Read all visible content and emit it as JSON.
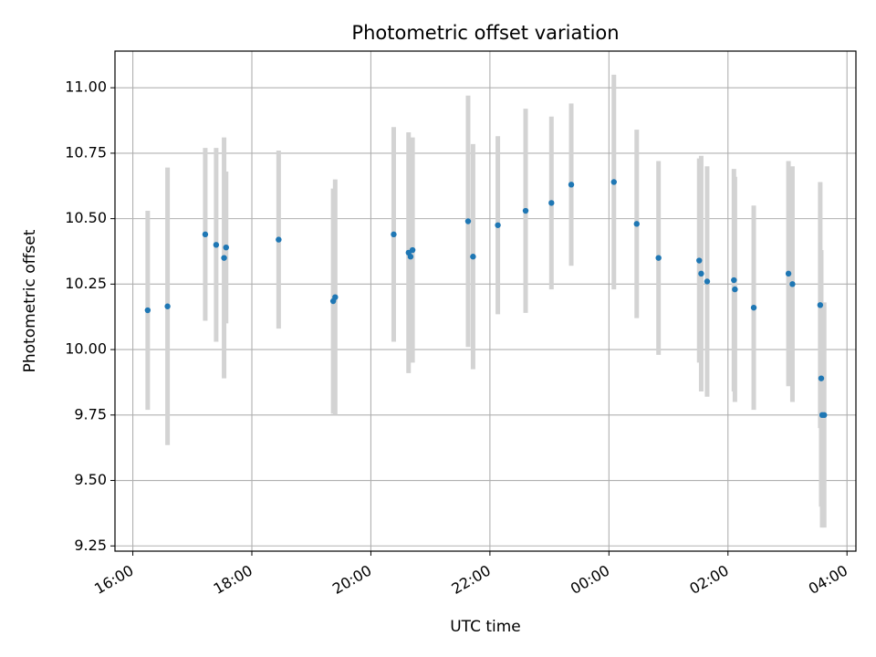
{
  "chart_data": {
    "type": "scatter",
    "title": "Photometric offset variation",
    "xlabel": "UTC time",
    "ylabel": "Photometric offset",
    "grid": true,
    "x_tick_labels": [
      "16:00",
      "18:00",
      "20:00",
      "22:00",
      "00:00",
      "02:00",
      "04:00"
    ],
    "x_ticks_hours": [
      16,
      18,
      20,
      22,
      24,
      26,
      28
    ],
    "xlim_hours": [
      15.7,
      28.15
    ],
    "y_ticks": [
      9.25,
      9.5,
      9.75,
      10.0,
      10.25,
      10.5,
      10.75,
      11.0
    ],
    "y_tick_labels": [
      "9.25",
      "9.50",
      "9.75",
      "10.00",
      "10.25",
      "10.50",
      "10.75",
      "11.00"
    ],
    "ylim": [
      9.23,
      11.14
    ],
    "marker_color": "#1f77b4",
    "errorbar_color": "#d3d3d3",
    "series": [
      {
        "points": [
          {
            "time": "16:15",
            "y": 10.15,
            "err": 0.38
          },
          {
            "time": "16:35",
            "y": 10.165,
            "err": 0.53
          },
          {
            "time": "17:13",
            "y": 10.44,
            "err": 0.33
          },
          {
            "time": "17:24",
            "y": 10.4,
            "err": 0.37
          },
          {
            "time": "17:32",
            "y": 10.35,
            "err": 0.46
          },
          {
            "time": "17:34",
            "y": 10.39,
            "err": 0.29
          },
          {
            "time": "18:27",
            "y": 10.42,
            "err": 0.34
          },
          {
            "time": "19:22",
            "y": 10.185,
            "err": 0.43
          },
          {
            "time": "19:24",
            "y": 10.2,
            "err": 0.45
          },
          {
            "time": "20:23",
            "y": 10.44,
            "err": 0.41
          },
          {
            "time": "20:38",
            "y": 10.37,
            "err": 0.46
          },
          {
            "time": "20:40",
            "y": 10.355,
            "err": 0.4
          },
          {
            "time": "20:42",
            "y": 10.38,
            "err": 0.43
          },
          {
            "time": "21:38",
            "y": 10.49,
            "err": 0.48
          },
          {
            "time": "21:43",
            "y": 10.355,
            "err": 0.43
          },
          {
            "time": "22:08",
            "y": 10.475,
            "err": 0.34
          },
          {
            "time": "22:36",
            "y": 10.53,
            "err": 0.39
          },
          {
            "time": "23:02",
            "y": 10.56,
            "err": 0.33
          },
          {
            "time": "23:22",
            "y": 10.63,
            "err": 0.31
          },
          {
            "time": "00:05",
            "y": 10.64,
            "err": 0.41
          },
          {
            "time": "00:28",
            "y": 10.48,
            "err": 0.36
          },
          {
            "time": "00:50",
            "y": 10.35,
            "err": 0.37
          },
          {
            "time": "01:31",
            "y": 10.34,
            "err": 0.39
          },
          {
            "time": "01:33",
            "y": 10.29,
            "err": 0.45
          },
          {
            "time": "01:39",
            "y": 10.26,
            "err": 0.44
          },
          {
            "time": "02:06",
            "y": 10.265,
            "err": 0.425
          },
          {
            "time": "02:07",
            "y": 10.23,
            "err": 0.43
          },
          {
            "time": "02:26",
            "y": 10.16,
            "err": 0.39
          },
          {
            "time": "03:01",
            "y": 10.29,
            "err": 0.43
          },
          {
            "time": "03:05",
            "y": 10.25,
            "err": 0.45
          },
          {
            "time": "03:33",
            "y": 10.17,
            "err": 0.47
          },
          {
            "time": "03:34",
            "y": 9.89,
            "err": 0.49
          },
          {
            "time": "03:35",
            "y": 9.75,
            "err": 0.43
          },
          {
            "time": "03:37",
            "y": 9.75,
            "err": 0.43
          }
        ]
      }
    ]
  }
}
